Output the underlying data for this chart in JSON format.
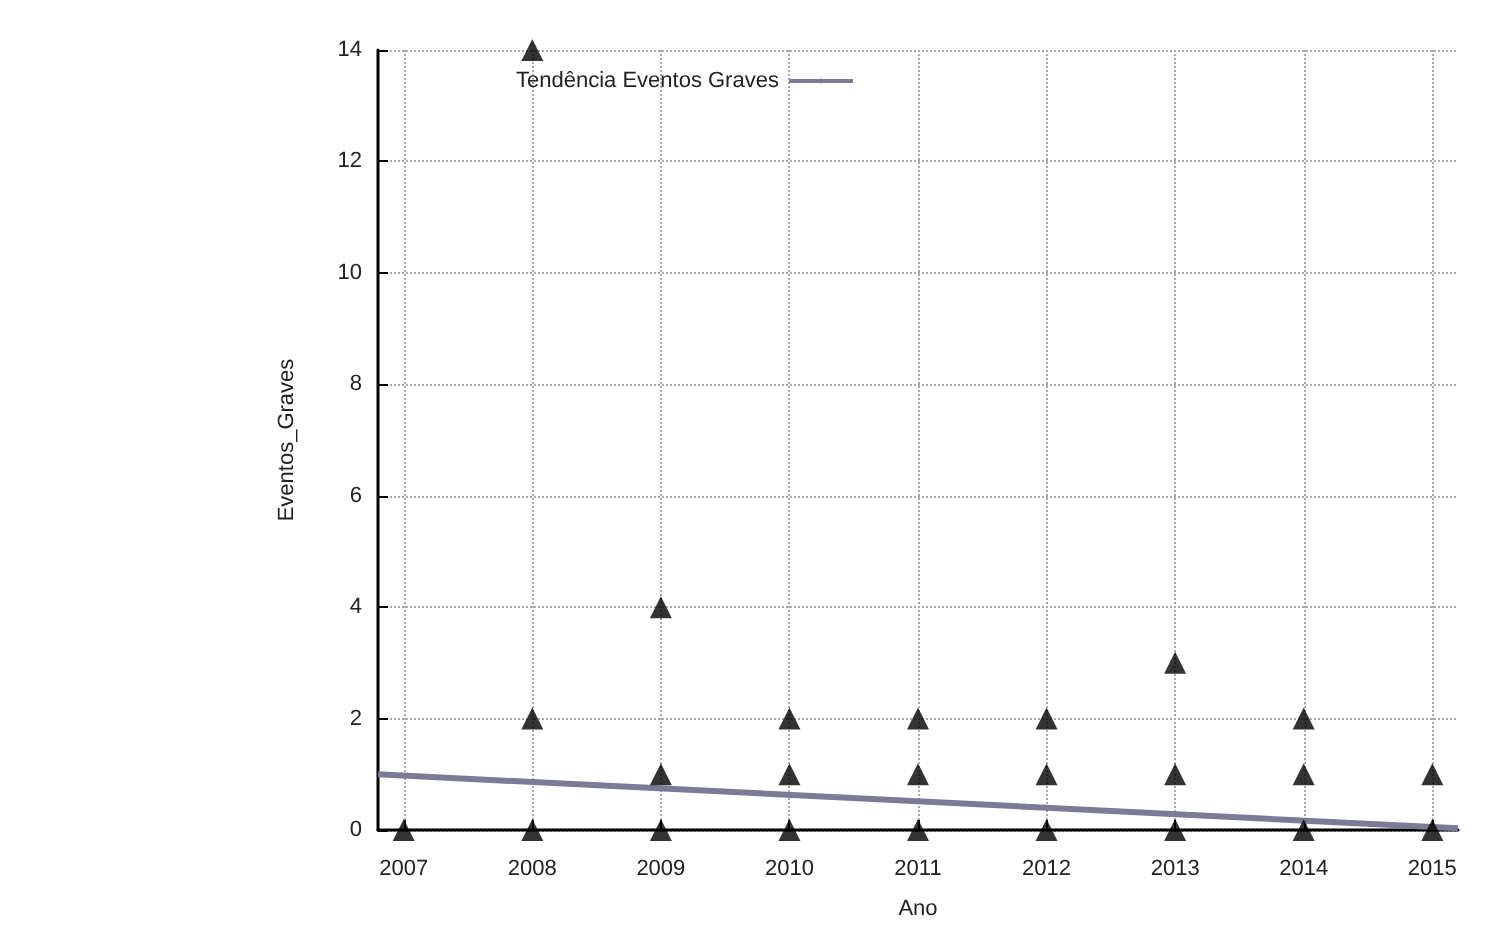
{
  "chart_data": {
    "type": "scatter",
    "xlabel": "Ano",
    "ylabel": "Eventos_Graves",
    "xlim": [
      2006.8,
      2015.2
    ],
    "xticks": [
      2007,
      2008,
      2009,
      2010,
      2011,
      2012,
      2013,
      2014,
      2015
    ],
    "ylim": [
      0,
      14
    ],
    "yticks": [
      0,
      2,
      4,
      6,
      8,
      10,
      12,
      14
    ],
    "grid": true,
    "legend": "top",
    "marker": "triangle",
    "series": [
      {
        "color": "#000000",
        "x": [
          2007,
          2008,
          2008,
          2008,
          2009,
          2009,
          2009,
          2010,
          2010,
          2010,
          2011,
          2011,
          2011,
          2012,
          2012,
          2012,
          2013,
          2013,
          2013,
          2014,
          2014,
          2014,
          2015,
          2015
        ],
        "values": [
          0,
          0,
          2,
          14,
          0,
          1,
          4,
          0,
          1,
          2,
          0,
          1,
          2,
          0,
          1,
          2,
          0,
          1,
          3,
          0,
          1,
          2,
          0,
          1
        ]
      },
      {
        "type": "line",
        "name": "Tendência Eventos Graves",
        "color": "#7b7b96",
        "marker": "none",
        "line_style": "solid",
        "x": [
          2006.8,
          2015.2
        ],
        "values": [
          1.0,
          0.03
        ]
      }
    ]
  }
}
